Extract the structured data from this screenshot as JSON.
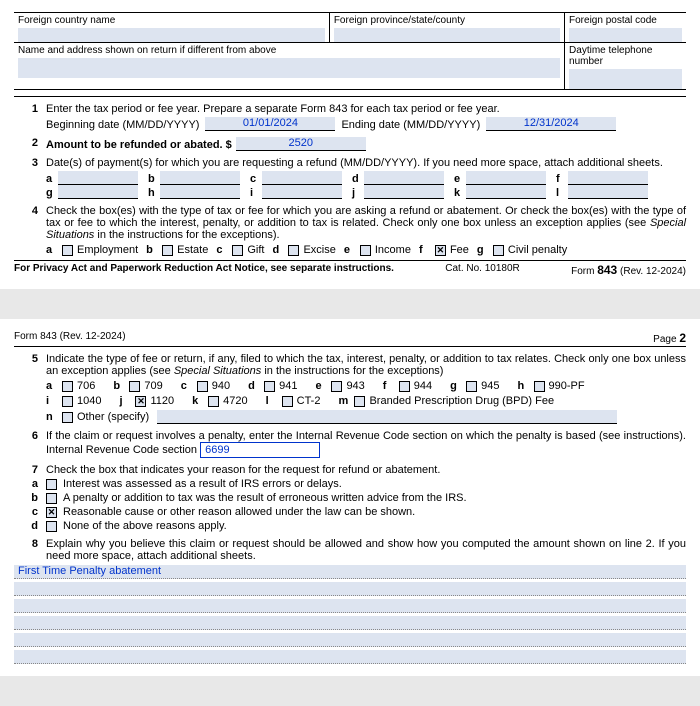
{
  "colors": {
    "fill_bg": "#dde4f0",
    "value_color": "#0033cc",
    "border": "#000000"
  },
  "header": {
    "foreign_country_label": "Foreign country name",
    "foreign_province_label": "Foreign province/state/county",
    "foreign_postal_label": "Foreign postal code",
    "name_address_label": "Name and address shown on return if different from above",
    "daytime_phone_label": "Daytime telephone number"
  },
  "line1": {
    "num": "1",
    "text": "Enter the tax period or fee year. Prepare a separate Form 843 for each tax period or fee year.",
    "begin_label": "Beginning date (MM/DD/YYYY)",
    "begin_value": "01/01/2024",
    "end_label": "Ending date (MM/DD/YYYY)",
    "end_value": "12/31/2024"
  },
  "line2": {
    "num": "2",
    "label": "Amount to be refunded or abated. $",
    "value": "2520"
  },
  "line3": {
    "num": "3",
    "text": "Date(s) of payment(s) for which you are requesting a refund (MM/DD/YYYY). If you need more space, attach additional sheets.",
    "letters": [
      "a",
      "b",
      "c",
      "d",
      "e",
      "f",
      "g",
      "h",
      "i",
      "j",
      "k",
      "l"
    ]
  },
  "line4": {
    "num": "4",
    "text": "Check the box(es) with the type of tax or fee for which you are asking a refund or abatement. Or check the box(es) with the type of tax or fee to which the interest, penalty, or addition to tax is related. Check only one box unless an exception applies (see",
    "italic": "Special Situations",
    "text2": " in the instructions for the exceptions).",
    "options": [
      {
        "letter": "a",
        "label": "Employment",
        "checked": false
      },
      {
        "letter": "b",
        "label": "Estate",
        "checked": false
      },
      {
        "letter": "c",
        "label": "Gift",
        "checked": false
      },
      {
        "letter": "d",
        "label": "Excise",
        "checked": false
      },
      {
        "letter": "e",
        "label": "Income",
        "checked": false
      },
      {
        "letter": "f",
        "label": "Fee",
        "checked": true
      },
      {
        "letter": "g",
        "label": "Civil penalty",
        "checked": false
      }
    ]
  },
  "footer1": {
    "left": "For Privacy Act and Paperwork Reduction Act Notice, see separate instructions.",
    "mid": "Cat. No. 10180R",
    "right_prefix": "Form ",
    "right_form": "843",
    "right_rev": " (Rev. 12-2024)"
  },
  "page2hdr": {
    "left": "Form 843 (Rev. 12-2024)",
    "right_label": "Page ",
    "right_num": "2"
  },
  "line5": {
    "num": "5",
    "text": "Indicate the type of fee or return, if any, filed to which the tax, interest, penalty, or addition to tax relates. Check only one box unless an exception applies (see ",
    "italic": "Special Situations",
    "text2": " in the instructions for the exceptions)",
    "row1": [
      {
        "letter": "a",
        "label": "706",
        "checked": false
      },
      {
        "letter": "b",
        "label": "709",
        "checked": false
      },
      {
        "letter": "c",
        "label": "940",
        "checked": false
      },
      {
        "letter": "d",
        "label": "941",
        "checked": false
      },
      {
        "letter": "e",
        "label": "943",
        "checked": false
      },
      {
        "letter": "f",
        "label": "944",
        "checked": false
      },
      {
        "letter": "g",
        "label": "945",
        "checked": false
      },
      {
        "letter": "h",
        "label": "990-PF",
        "checked": false
      }
    ],
    "row2": [
      {
        "letter": "i",
        "label": "1040",
        "checked": false
      },
      {
        "letter": "j",
        "label": "1120",
        "checked": true
      },
      {
        "letter": "k",
        "label": "4720",
        "checked": false
      },
      {
        "letter": "l",
        "label": "CT-2",
        "checked": false
      },
      {
        "letter": "m",
        "label": "Branded Prescription Drug (BPD) Fee",
        "checked": false
      }
    ],
    "other_letter": "n",
    "other_label": "Other (specify)"
  },
  "line6": {
    "num": "6",
    "text": "If the claim or request involves a penalty, enter the Internal Revenue Code section on which the penalty is based (see instructions). Internal Revenue Code section",
    "value": "6699"
  },
  "line7": {
    "num": "7",
    "text": "Check the box that indicates your reason for the request for refund or abatement.",
    "options": [
      {
        "letter": "a",
        "label": "Interest was assessed as a result of IRS errors or delays.",
        "checked": false
      },
      {
        "letter": "b",
        "label": "A penalty or addition to tax was the result of erroneous written advice from the IRS.",
        "checked": false
      },
      {
        "letter": "c",
        "label": "Reasonable cause or other reason allowed under the law can be shown.",
        "checked": true
      },
      {
        "letter": "d",
        "label": "None of the above reasons apply.",
        "checked": false
      }
    ]
  },
  "line8": {
    "num": "8",
    "text": "Explain why you believe this claim or request should be allowed and show how you computed the amount shown on line 2. If you need more space, attach additional sheets.",
    "explanation": "First Time Penalty abatement"
  }
}
